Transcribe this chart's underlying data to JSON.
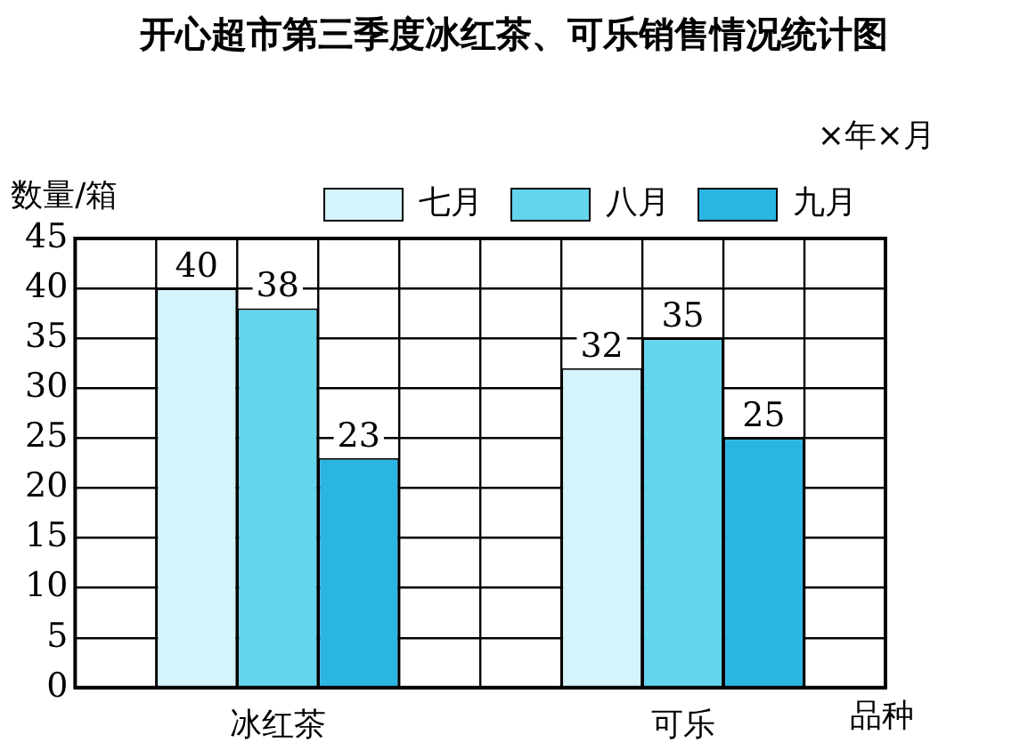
{
  "chart_data": {
    "type": "bar",
    "title": "开心超市第三季度冰红茶、可乐销售情况统计图",
    "subtitle": "×年×月",
    "ylabel": "数量/箱",
    "xlabel": "品种",
    "categories": [
      "冰红茶",
      "可乐"
    ],
    "series": [
      {
        "name": "七月",
        "color": "#d4f3fa",
        "values": [
          40,
          32
        ]
      },
      {
        "name": "八月",
        "color": "#63d6ee",
        "values": [
          38,
          35
        ]
      },
      {
        "name": "九月",
        "color": "#2bb5e2",
        "values": [
          23,
          25
        ]
      }
    ],
    "ylim": [
      0,
      45
    ],
    "yticks": [
      0,
      5,
      10,
      15,
      20,
      25,
      30,
      35,
      40,
      45
    ],
    "grid": true,
    "legend": "top right",
    "data_labels": true
  }
}
